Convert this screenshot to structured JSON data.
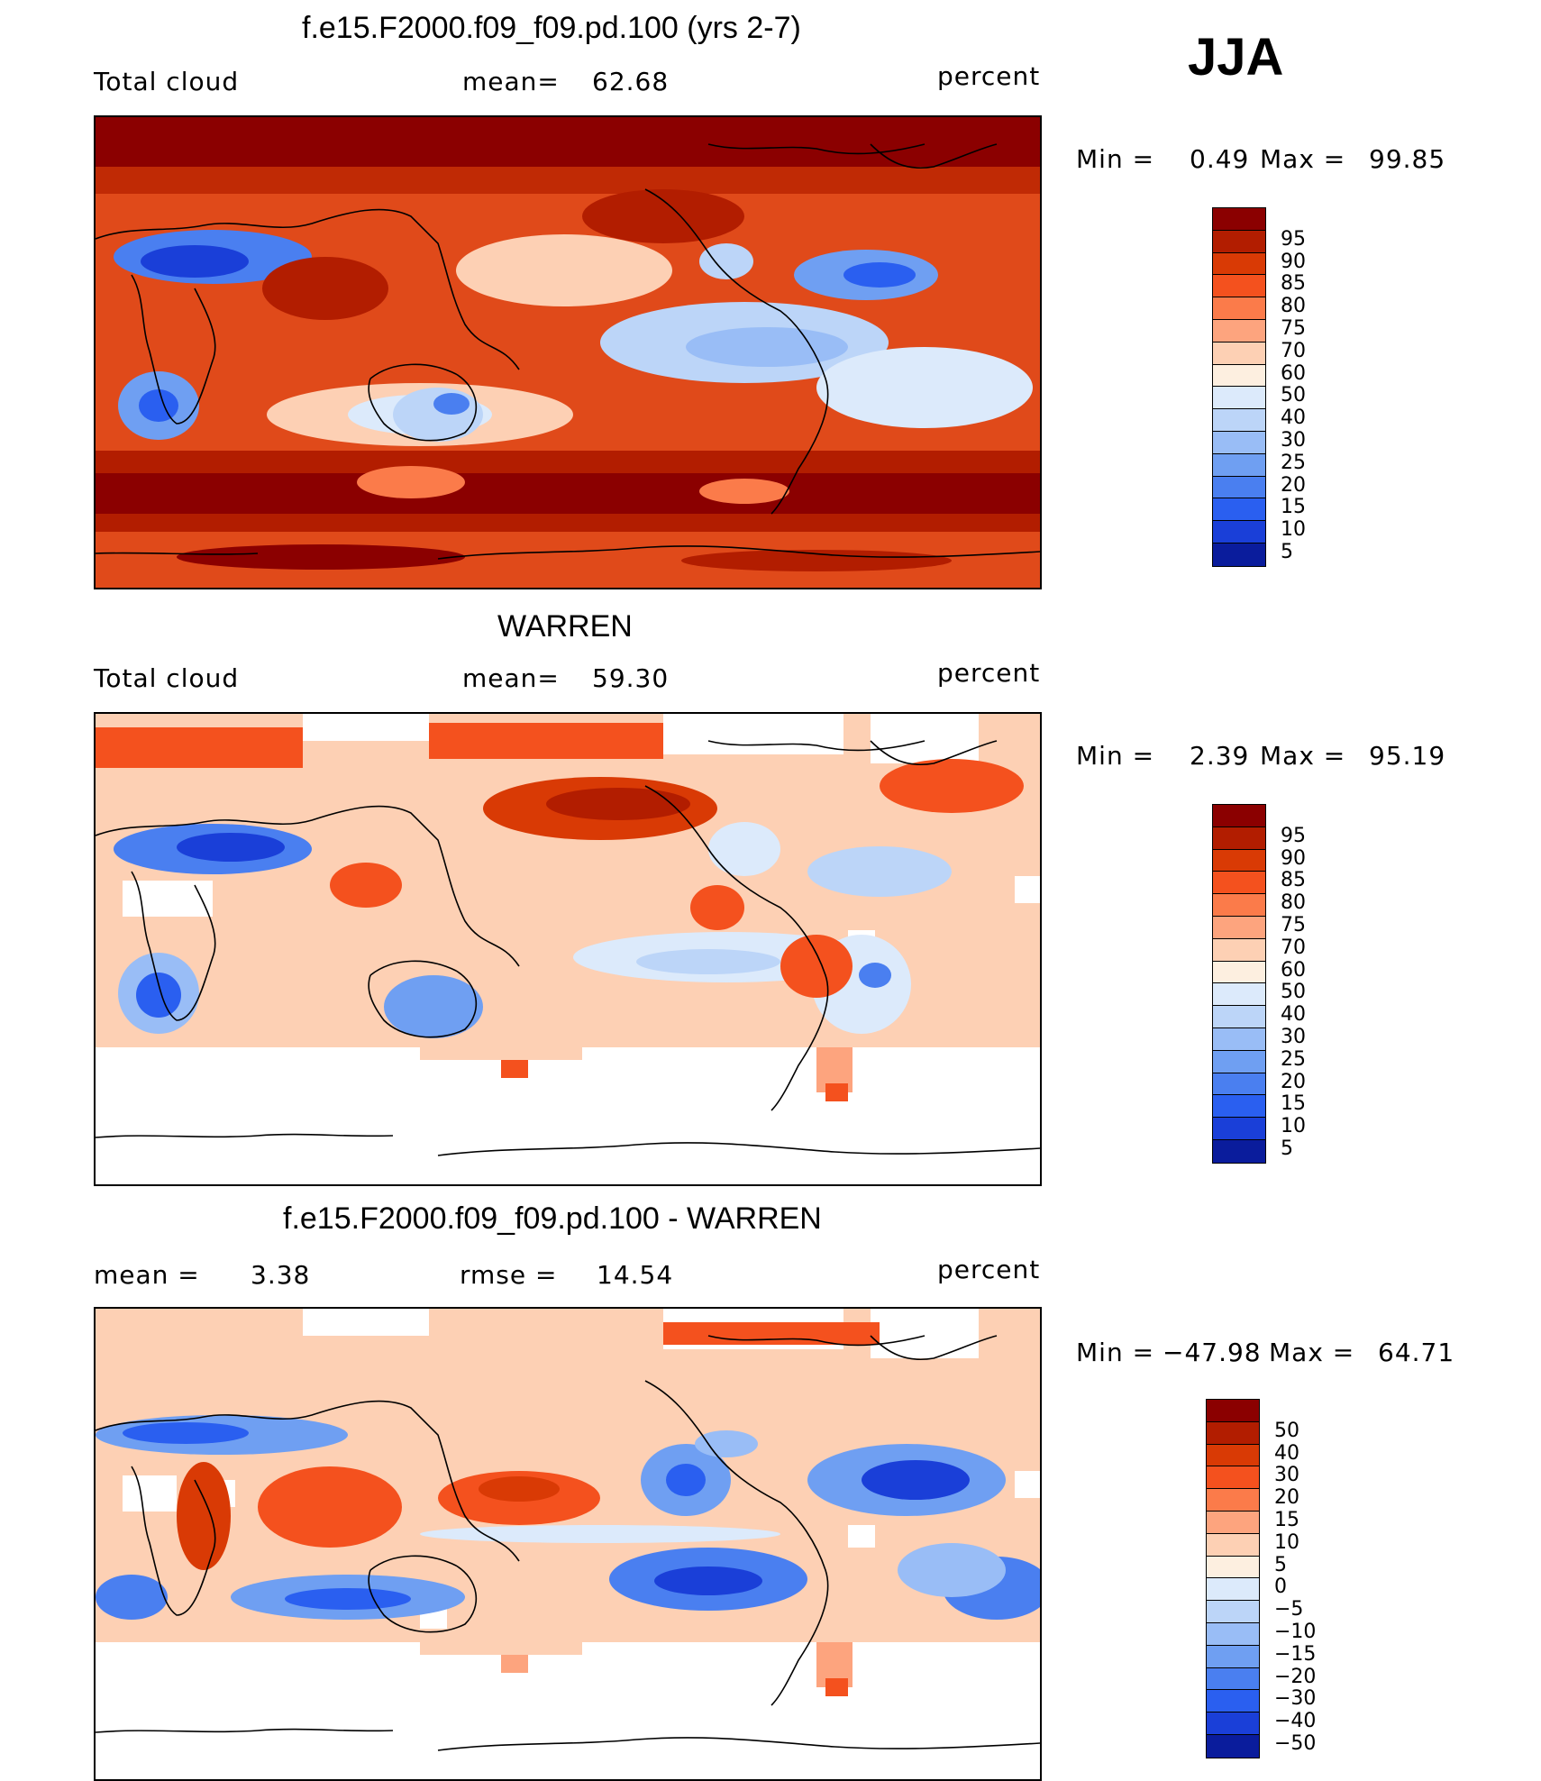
{
  "season": "JJA",
  "palettes": {
    "abs": [
      "#8b0000",
      "#b21d00",
      "#d93a05",
      "#f4511e",
      "#fb7b4a",
      "#fda47e",
      "#fdd0b4",
      "#fdefe0",
      "#dceafb",
      "#bcd5f8",
      "#99bdf6",
      "#6f9ff2",
      "#4a7ff0",
      "#2a5ff0",
      "#1a3fd8",
      "#0a1c9c"
    ],
    "diff": [
      "#8b0000",
      "#b21d00",
      "#d93a05",
      "#f4511e",
      "#fb7b4a",
      "#fda47e",
      "#fdd0b4",
      "#fdefe0",
      "#dceafb",
      "#bcd5f8",
      "#99bdf6",
      "#6f9ff2",
      "#4a7ff0",
      "#2a5ff0",
      "#1a3fd8",
      "#0a1c9c"
    ]
  },
  "panels": [
    {
      "title": "f.e15.F2000.f09_f09.pd.100 (yrs 2-7)",
      "left_label": "Total cloud",
      "center_label": "mean=",
      "center_value": "62.68",
      "units": "percent",
      "min_label": "Min =",
      "min_value": "0.49",
      "max_label": "Max =",
      "max_value": "99.85",
      "colorbar_ticks": [
        "95",
        "90",
        "85",
        "80",
        "75",
        "70",
        "60",
        "50",
        "40",
        "30",
        "25",
        "20",
        "15",
        "10",
        "5"
      ]
    },
    {
      "title": "WARREN",
      "left_label": "Total cloud",
      "center_label": "mean=",
      "center_value": "59.30",
      "units": "percent",
      "min_label": "Min =",
      "min_value": "2.39",
      "max_label": "Max =",
      "max_value": "95.19",
      "colorbar_ticks": [
        "95",
        "90",
        "85",
        "80",
        "75",
        "70",
        "60",
        "50",
        "40",
        "30",
        "25",
        "20",
        "15",
        "10",
        "5"
      ]
    },
    {
      "title": "f.e15.F2000.f09_f09.pd.100 - WARREN",
      "left_label": "mean =",
      "left_value": "3.38",
      "center_label": "rmse =",
      "center_value": "14.54",
      "units": "percent",
      "min_label": "Min =",
      "min_value": "−47.98",
      "max_label": "Max =",
      "max_value": "64.71",
      "colorbar_ticks": [
        "50",
        "40",
        "30",
        "20",
        "15",
        "10",
        "5",
        "0",
        "−5",
        "−10",
        "−15",
        "−20",
        "−30",
        "−40",
        "−50"
      ]
    }
  ]
}
